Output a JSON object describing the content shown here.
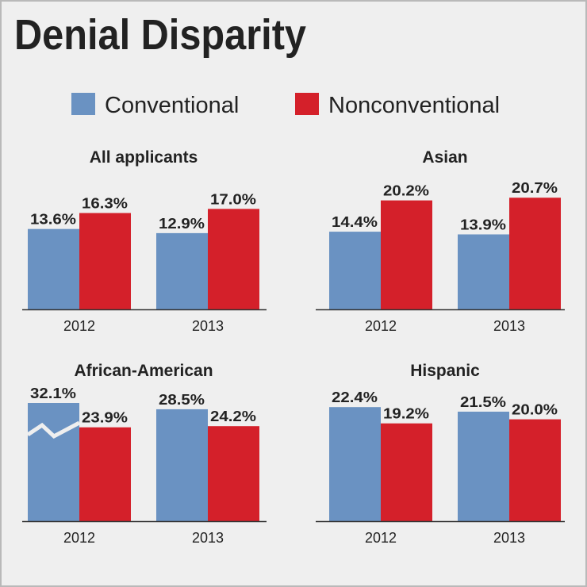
{
  "chart_data": {
    "type": "bar",
    "title": "Denial Disparity",
    "legend": {
      "placement": "top",
      "entries": [
        {
          "name": "Conventional",
          "color": "#6a92c2"
        },
        {
          "name": "Nonconventional",
          "color": "#d4202a"
        }
      ]
    },
    "categories": [
      "2012",
      "2013"
    ],
    "panels": [
      {
        "title": "All applicants",
        "series": [
          {
            "name": "Conventional",
            "values": [
              13.6,
              12.9
            ],
            "labels": [
              "13.6%",
              "12.9%"
            ]
          },
          {
            "name": "Nonconventional",
            "values": [
              16.3,
              17.0
            ],
            "labels": [
              "16.3%",
              "17.0%"
            ]
          }
        ]
      },
      {
        "title": "Asian",
        "series": [
          {
            "name": "Conventional",
            "values": [
              14.4,
              13.9
            ],
            "labels": [
              "14.4%",
              "13.9%"
            ]
          },
          {
            "name": "Nonconventional",
            "values": [
              20.2,
              20.7
            ],
            "labels": [
              "20.2%",
              "20.7%"
            ]
          }
        ]
      },
      {
        "title": "African-American",
        "axis_break": {
          "series": "Conventional",
          "category": "2012"
        },
        "series": [
          {
            "name": "Conventional",
            "values": [
              32.1,
              28.5
            ],
            "labels": [
              "32.1%",
              "28.5%"
            ]
          },
          {
            "name": "Nonconventional",
            "values": [
              23.9,
              24.2
            ],
            "labels": [
              "23.9%",
              "24.2%"
            ]
          }
        ]
      },
      {
        "title": "Hispanic",
        "series": [
          {
            "name": "Conventional",
            "values": [
              22.4,
              21.5
            ],
            "labels": [
              "22.4%",
              "21.5%"
            ]
          },
          {
            "name": "Nonconventional",
            "values": [
              19.2,
              20.0
            ],
            "labels": [
              "19.2%",
              "20.0%"
            ]
          }
        ]
      }
    ]
  }
}
